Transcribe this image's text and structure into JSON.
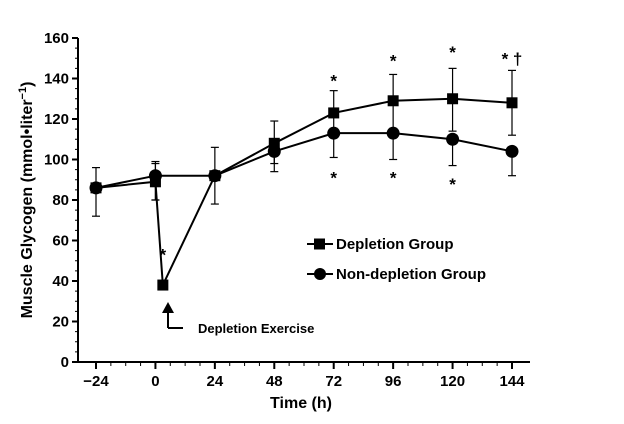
{
  "chart_data": {
    "type": "line",
    "xlabel": "Time (h)",
    "ylabel_main": "Muscle Glycogen (mmol•liter",
    "ylabel_sup": "−1",
    "ylabel_close": ")",
    "xlim": [
      -24,
      144
    ],
    "ylim": [
      0,
      160
    ],
    "x_ticks": [
      -24,
      0,
      24,
      48,
      72,
      96,
      120,
      144
    ],
    "x_tick_labels": [
      "−24",
      "0",
      "24",
      "48",
      "72",
      "96",
      "120",
      "144"
    ],
    "y_ticks": [
      0,
      20,
      40,
      60,
      80,
      100,
      120,
      140,
      160
    ],
    "y_tick_labels": [
      "0",
      "20",
      "40",
      "60",
      "80",
      "100",
      "120",
      "140",
      "160"
    ],
    "legend_position": "center-right",
    "series": [
      {
        "name": "Depletion Group",
        "marker": "square",
        "points": [
          {
            "x": -24,
            "y": 86,
            "err_up": 10,
            "err_down": 14
          },
          {
            "x": 0,
            "y": 89,
            "err_up": 10,
            "err_down": 9
          },
          {
            "x": 3,
            "y": 38,
            "err_up": 0,
            "err_down": 0
          },
          {
            "x": 24,
            "y": 92,
            "err_up": 14,
            "err_down": 14
          },
          {
            "x": 48,
            "y": 108,
            "err_up": 11,
            "err_down": 10
          },
          {
            "x": 72,
            "y": 123,
            "err_up": 11,
            "err_down": 10
          },
          {
            "x": 96,
            "y": 129,
            "err_up": 13,
            "err_down": 14
          },
          {
            "x": 120,
            "y": 130,
            "err_up": 15,
            "err_down": 16
          },
          {
            "x": 144,
            "y": 128,
            "err_up": 16,
            "err_down": 16
          }
        ]
      },
      {
        "name": "Non-depletion Group",
        "marker": "circle",
        "points": [
          {
            "x": -24,
            "y": 86,
            "err_up": 0,
            "err_down": 0
          },
          {
            "x": 0,
            "y": 92,
            "err_up": 6,
            "err_down": 12
          },
          {
            "x": 24,
            "y": 92,
            "err_up": 0,
            "err_down": 0
          },
          {
            "x": 48,
            "y": 104,
            "err_up": 0,
            "err_down": 10
          },
          {
            "x": 72,
            "y": 113,
            "err_up": 0,
            "err_down": 12
          },
          {
            "x": 96,
            "y": 113,
            "err_up": 0,
            "err_down": 13
          },
          {
            "x": 120,
            "y": 110,
            "err_up": 0,
            "err_down": 13
          },
          {
            "x": 144,
            "y": 104,
            "err_up": 0,
            "err_down": 12
          }
        ]
      }
    ],
    "significance_marks": [
      {
        "x": 3,
        "y": 53,
        "text": "*"
      },
      {
        "x": 72,
        "y": 139,
        "text": "*"
      },
      {
        "x": 96,
        "y": 149,
        "text": "*"
      },
      {
        "x": 120,
        "y": 153,
        "text": "*"
      },
      {
        "x": 144,
        "y": 150,
        "text": "* †"
      },
      {
        "x": 72,
        "y": 91,
        "text": "*"
      },
      {
        "x": 96,
        "y": 91,
        "text": "*"
      },
      {
        "x": 120,
        "y": 88,
        "text": "*"
      }
    ],
    "annotation": {
      "text": "Depletion Exercise",
      "x": 0
    }
  }
}
